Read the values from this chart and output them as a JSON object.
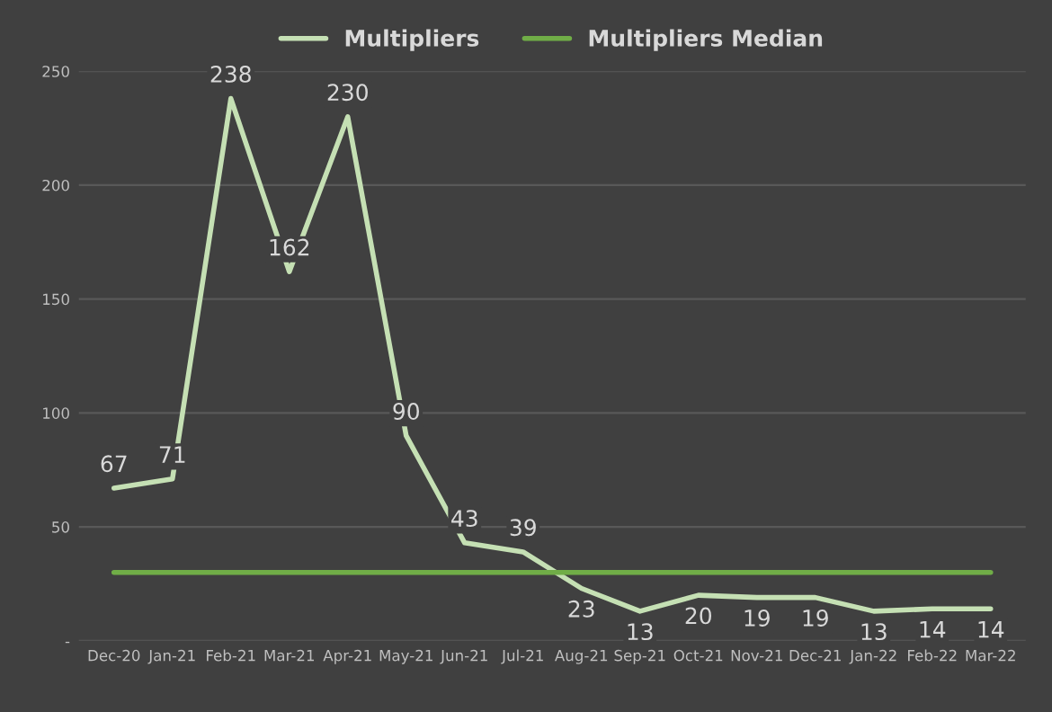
{
  "chart_data": {
    "type": "line",
    "categories": [
      "Dec-20",
      "Jan-21",
      "Feb-21",
      "Mar-21",
      "Apr-21",
      "May-21",
      "Jun-21",
      "Jul-21",
      "Aug-21",
      "Sep-21",
      "Oct-21",
      "Nov-21",
      "Dec-21",
      "Jan-22",
      "Feb-22",
      "Mar-22"
    ],
    "series": [
      {
        "name": "Multipliers",
        "color": "#c5e0b4",
        "values": [
          67,
          71,
          238,
          162,
          230,
          90,
          43,
          39,
          23,
          13,
          20,
          19,
          19,
          13,
          14,
          14
        ],
        "data_labels": true
      },
      {
        "name": "Multipliers Median",
        "color": "#70ad47",
        "values": [
          30,
          30,
          30,
          30,
          30,
          30,
          30,
          30,
          30,
          30,
          30,
          30,
          30,
          30,
          30,
          30
        ]
      }
    ],
    "ylim": [
      0,
      250
    ],
    "yticks": [
      {
        "value": 0,
        "label": "-"
      },
      50,
      100,
      150,
      200,
      250
    ],
    "grid": "y",
    "legend": "top",
    "marker": "none",
    "line_style": "solid"
  }
}
